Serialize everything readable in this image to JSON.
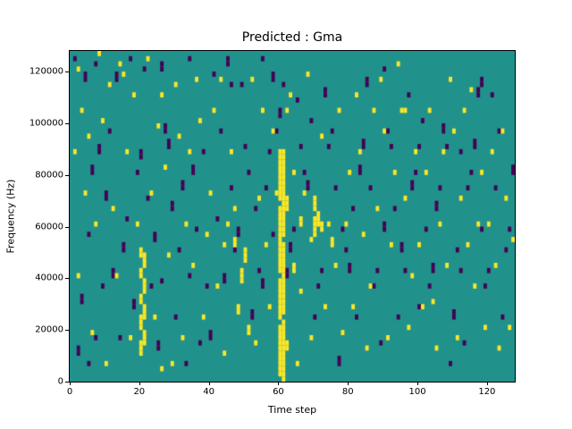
{
  "chart_data": {
    "type": "heatmap",
    "title": "Predicted : Gma",
    "xlabel": "Time step",
    "ylabel": "Frequency (Hz)",
    "x_range": [
      0,
      128
    ],
    "y_range": [
      0,
      128000
    ],
    "x_ticks": [
      0,
      20,
      40,
      60,
      80,
      100,
      120
    ],
    "y_ticks": [
      0,
      20000,
      40000,
      60000,
      80000,
      100000,
      120000
    ],
    "n_cols": 128,
    "n_rows": 64,
    "row_height_hz": 2000,
    "colors": {
      "mid": "#21918c",
      "high": "#fde725",
      "low": "#440154",
      "axis": "#000000",
      "background": "#ffffff"
    },
    "legend": "none",
    "grid": false,
    "yellow_runs": [
      [
        60,
        1,
        10
      ],
      [
        60,
        12,
        19
      ],
      [
        60,
        21,
        33
      ],
      [
        60,
        35,
        44
      ],
      [
        61,
        0,
        11
      ],
      [
        61,
        13,
        26
      ],
      [
        61,
        28,
        44
      ],
      [
        62,
        6,
        7
      ],
      [
        62,
        33,
        35
      ],
      [
        20,
        5,
        7
      ],
      [
        21,
        7,
        9
      ],
      [
        20,
        10,
        12
      ],
      [
        21,
        12,
        14
      ],
      [
        20,
        15,
        16
      ],
      [
        21,
        17,
        19
      ],
      [
        20,
        20,
        21
      ],
      [
        21,
        22,
        24
      ],
      [
        20,
        24,
        25
      ],
      [
        70,
        28,
        31
      ],
      [
        70,
        33,
        35
      ],
      [
        71,
        30,
        32
      ],
      [
        69,
        27,
        27
      ],
      [
        72,
        29,
        30
      ],
      [
        49,
        19,
        21
      ],
      [
        50,
        23,
        25
      ],
      [
        48,
        13,
        14
      ],
      [
        51,
        9,
        10
      ],
      [
        47,
        26,
        27
      ],
      [
        75,
        26,
        27
      ],
      [
        66,
        30,
        31
      ],
      [
        64,
        21,
        22
      ],
      [
        2,
        60,
        60
      ],
      [
        5,
        47,
        47
      ],
      [
        8,
        63,
        63
      ],
      [
        14,
        61,
        61
      ],
      [
        15,
        59,
        59
      ],
      [
        3,
        52,
        52
      ],
      [
        4,
        36,
        36
      ],
      [
        2,
        20,
        20
      ],
      [
        6,
        9,
        9
      ],
      [
        10,
        3,
        3
      ],
      [
        18,
        55,
        55
      ],
      [
        22,
        62,
        62
      ],
      [
        25,
        49,
        49
      ],
      [
        27,
        41,
        41
      ],
      [
        30,
        57,
        57
      ],
      [
        33,
        30,
        30
      ],
      [
        35,
        22,
        22
      ],
      [
        37,
        50,
        50
      ],
      [
        40,
        36,
        36
      ],
      [
        42,
        18,
        18
      ],
      [
        44,
        5,
        5
      ],
      [
        46,
        44,
        44
      ],
      [
        52,
        58,
        58
      ],
      [
        54,
        35,
        35
      ],
      [
        56,
        26,
        26
      ],
      [
        58,
        48,
        48
      ],
      [
        63,
        55,
        55
      ],
      [
        65,
        3,
        3
      ],
      [
        66,
        17,
        17
      ],
      [
        68,
        59,
        59
      ],
      [
        72,
        47,
        47
      ],
      [
        74,
        30,
        30
      ],
      [
        76,
        22,
        22
      ],
      [
        78,
        9,
        9
      ],
      [
        80,
        40,
        40
      ],
      [
        82,
        55,
        55
      ],
      [
        84,
        28,
        28
      ],
      [
        86,
        18,
        18
      ],
      [
        88,
        33,
        33
      ],
      [
        90,
        48,
        48
      ],
      [
        92,
        26,
        26
      ],
      [
        94,
        61,
        61
      ],
      [
        96,
        35,
        35
      ],
      [
        98,
        20,
        20
      ],
      [
        100,
        26,
        26
      ],
      [
        102,
        40,
        40
      ],
      [
        104,
        15,
        15
      ],
      [
        106,
        30,
        30
      ],
      [
        108,
        22,
        22
      ],
      [
        110,
        48,
        48
      ],
      [
        112,
        35,
        35
      ],
      [
        114,
        26,
        26
      ],
      [
        116,
        18,
        18
      ],
      [
        118,
        40,
        40
      ],
      [
        120,
        30,
        30
      ],
      [
        122,
        22,
        22
      ],
      [
        124,
        48,
        48
      ],
      [
        126,
        10,
        10
      ],
      [
        12,
        33,
        33
      ],
      [
        16,
        44,
        44
      ],
      [
        24,
        12,
        12
      ],
      [
        28,
        24,
        24
      ],
      [
        32,
        8,
        8
      ],
      [
        36,
        58,
        58
      ],
      [
        38,
        12,
        12
      ],
      [
        62,
        52,
        52
      ],
      [
        64,
        40,
        40
      ],
      [
        67,
        36,
        36
      ],
      [
        73,
        14,
        14
      ],
      [
        77,
        52,
        52
      ],
      [
        85,
        6,
        6
      ],
      [
        95,
        52,
        52
      ],
      [
        105,
        6,
        6
      ],
      [
        115,
        56,
        56
      ],
      [
        125,
        35,
        35
      ],
      [
        9,
        50,
        50
      ],
      [
        11,
        57,
        57
      ],
      [
        19,
        30,
        30
      ],
      [
        23,
        36,
        36
      ],
      [
        29,
        3,
        3
      ],
      [
        31,
        47,
        47
      ],
      [
        39,
        28,
        28
      ],
      [
        43,
        58,
        58
      ],
      [
        47,
        33,
        33
      ],
      [
        53,
        7,
        7
      ],
      [
        57,
        14,
        14
      ],
      [
        59,
        36,
        36
      ],
      [
        69,
        8,
        8
      ],
      [
        79,
        30,
        30
      ],
      [
        83,
        44,
        44
      ],
      [
        87,
        52,
        52
      ],
      [
        91,
        8,
        8
      ],
      [
        93,
        40,
        40
      ],
      [
        97,
        10,
        10
      ],
      [
        99,
        44,
        44
      ],
      [
        103,
        52,
        52
      ],
      [
        107,
        44,
        44
      ],
      [
        111,
        8,
        8
      ],
      [
        113,
        52,
        52
      ],
      [
        117,
        30,
        30
      ],
      [
        119,
        10,
        10
      ],
      [
        121,
        44,
        44
      ],
      [
        123,
        6,
        6
      ],
      [
        127,
        27,
        27
      ],
      [
        1,
        44,
        44
      ],
      [
        7,
        30,
        30
      ],
      [
        13,
        20,
        20
      ],
      [
        17,
        8,
        8
      ],
      [
        26,
        55,
        55
      ],
      [
        34,
        44,
        44
      ],
      [
        41,
        52,
        52
      ],
      [
        45,
        30,
        30
      ],
      [
        55,
        52,
        52
      ],
      [
        81,
        14,
        14
      ],
      [
        89,
        58,
        58
      ],
      [
        101,
        14,
        14
      ],
      [
        109,
        58,
        58
      ],
      [
        26,
        2,
        2
      ],
      [
        44,
        26,
        26
      ],
      [
        96,
        52,
        52
      ]
    ],
    "purple_runs": [
      [
        1,
        62,
        62
      ],
      [
        4,
        58,
        59
      ],
      [
        7,
        61,
        61
      ],
      [
        13,
        58,
        59
      ],
      [
        17,
        62,
        62
      ],
      [
        21,
        60,
        60
      ],
      [
        26,
        60,
        61
      ],
      [
        34,
        62,
        62
      ],
      [
        41,
        59,
        59
      ],
      [
        45,
        61,
        62
      ],
      [
        49,
        57,
        57
      ],
      [
        55,
        62,
        62
      ],
      [
        58,
        58,
        59
      ],
      [
        3,
        15,
        16
      ],
      [
        5,
        28,
        28
      ],
      [
        8,
        44,
        45
      ],
      [
        10,
        35,
        36
      ],
      [
        12,
        20,
        21
      ],
      [
        14,
        8,
        8
      ],
      [
        16,
        31,
        31
      ],
      [
        18,
        14,
        15
      ],
      [
        20,
        43,
        44
      ],
      [
        22,
        35,
        35
      ],
      [
        24,
        27,
        28
      ],
      [
        26,
        19,
        19
      ],
      [
        28,
        45,
        46
      ],
      [
        30,
        12,
        12
      ],
      [
        32,
        37,
        38
      ],
      [
        34,
        20,
        20
      ],
      [
        36,
        29,
        29
      ],
      [
        38,
        44,
        44
      ],
      [
        40,
        8,
        9
      ],
      [
        42,
        31,
        31
      ],
      [
        44,
        19,
        20
      ],
      [
        46,
        37,
        37
      ],
      [
        48,
        28,
        29
      ],
      [
        50,
        45,
        45
      ],
      [
        52,
        12,
        13
      ],
      [
        54,
        21,
        21
      ],
      [
        56,
        37,
        37
      ],
      [
        58,
        28,
        28
      ],
      [
        60,
        51,
        52
      ],
      [
        62,
        20,
        21
      ],
      [
        64,
        29,
        29
      ],
      [
        66,
        45,
        45
      ],
      [
        68,
        37,
        38
      ],
      [
        70,
        12,
        12
      ],
      [
        72,
        21,
        21
      ],
      [
        74,
        45,
        45
      ],
      [
        76,
        37,
        37
      ],
      [
        78,
        29,
        29
      ],
      [
        80,
        21,
        22
      ],
      [
        82,
        12,
        12
      ],
      [
        84,
        45,
        46
      ],
      [
        86,
        37,
        37
      ],
      [
        88,
        21,
        21
      ],
      [
        90,
        29,
        30
      ],
      [
        92,
        45,
        45
      ],
      [
        94,
        12,
        12
      ],
      [
        96,
        21,
        21
      ],
      [
        98,
        37,
        38
      ],
      [
        100,
        45,
        45
      ],
      [
        102,
        29,
        29
      ],
      [
        104,
        21,
        22
      ],
      [
        106,
        37,
        37
      ],
      [
        108,
        45,
        45
      ],
      [
        110,
        12,
        13
      ],
      [
        112,
        21,
        21
      ],
      [
        114,
        37,
        37
      ],
      [
        116,
        45,
        46
      ],
      [
        118,
        29,
        29
      ],
      [
        120,
        21,
        21
      ],
      [
        122,
        37,
        37
      ],
      [
        124,
        12,
        12
      ],
      [
        126,
        29,
        29
      ],
      [
        2,
        5,
        6
      ],
      [
        6,
        40,
        41
      ],
      [
        9,
        18,
        18
      ],
      [
        11,
        48,
        48
      ],
      [
        15,
        25,
        26
      ],
      [
        19,
        40,
        40
      ],
      [
        23,
        18,
        18
      ],
      [
        27,
        48,
        49
      ],
      [
        31,
        25,
        25
      ],
      [
        35,
        40,
        41
      ],
      [
        39,
        18,
        18
      ],
      [
        43,
        48,
        48
      ],
      [
        47,
        25,
        25
      ],
      [
        51,
        40,
        40
      ],
      [
        55,
        18,
        19
      ],
      [
        59,
        48,
        48
      ],
      [
        63,
        25,
        26
      ],
      [
        67,
        40,
        40
      ],
      [
        71,
        18,
        18
      ],
      [
        75,
        48,
        48
      ],
      [
        79,
        25,
        25
      ],
      [
        83,
        40,
        41
      ],
      [
        87,
        18,
        18
      ],
      [
        91,
        48,
        48
      ],
      [
        95,
        25,
        26
      ],
      [
        99,
        40,
        40
      ],
      [
        103,
        18,
        18
      ],
      [
        107,
        48,
        49
      ],
      [
        111,
        25,
        25
      ],
      [
        115,
        40,
        40
      ],
      [
        119,
        18,
        18
      ],
      [
        123,
        48,
        48
      ],
      [
        127,
        40,
        41
      ],
      [
        29,
        33,
        34
      ],
      [
        37,
        7,
        7
      ],
      [
        53,
        33,
        33
      ],
      [
        65,
        54,
        54
      ],
      [
        73,
        55,
        56
      ],
      [
        81,
        33,
        33
      ],
      [
        89,
        7,
        7
      ],
      [
        97,
        55,
        55
      ],
      [
        105,
        33,
        34
      ],
      [
        113,
        7,
        7
      ],
      [
        121,
        55,
        55
      ],
      [
        5,
        3,
        3
      ],
      [
        33,
        3,
        3
      ],
      [
        69,
        50,
        50
      ],
      [
        77,
        3,
        4
      ],
      [
        93,
        33,
        33
      ],
      [
        109,
        3,
        3
      ],
      [
        117,
        55,
        56
      ],
      [
        125,
        25,
        25
      ],
      [
        57,
        44,
        44
      ],
      [
        85,
        57,
        58
      ],
      [
        101,
        50,
        50
      ],
      [
        25,
        6,
        7
      ],
      [
        61,
        57,
        57
      ],
      [
        118,
        57,
        58
      ],
      [
        46,
        57,
        57
      ],
      [
        90,
        60,
        60
      ],
      [
        100,
        14,
        14
      ],
      [
        112,
        44,
        44
      ],
      [
        7,
        8,
        8
      ]
    ]
  }
}
